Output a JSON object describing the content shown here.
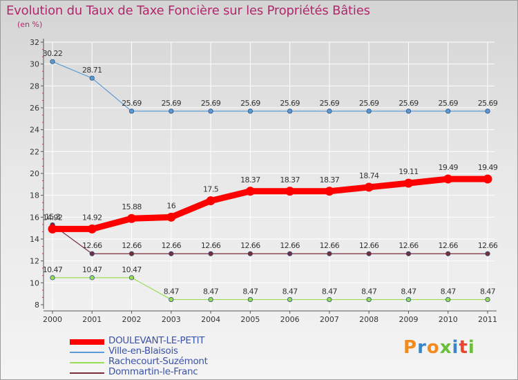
{
  "title": "Evolution du Taux de Taxe Foncière sur les Propriétés Bâties",
  "subtitle": "(en %)",
  "chart_data": {
    "type": "line",
    "title": "Evolution du Taux de Taxe Foncière sur les Propriétés Bâties",
    "ylabel": "(en %)",
    "xlabel": "",
    "ylim": [
      8,
      32
    ],
    "y_ticks": [
      8,
      10,
      12,
      14,
      16,
      18,
      20,
      22,
      24,
      26,
      28,
      30,
      32
    ],
    "categories": [
      "2000",
      "2001",
      "2002",
      "2003",
      "2004",
      "2005",
      "2006",
      "2007",
      "2008",
      "2009",
      "2010",
      "2011"
    ],
    "series": [
      {
        "name": "DOULEVANT-LE-PETIT",
        "color": "#ff0000",
        "values": [
          14.92,
          14.92,
          15.88,
          16,
          17.5,
          18.37,
          18.37,
          18.37,
          18.74,
          19.11,
          19.49,
          19.49
        ],
        "labels": [
          "14.92",
          "14.92",
          "15.88",
          "16",
          "17.5",
          "18.37",
          "18.37",
          "18.37",
          "18.74",
          "19.11",
          "19.49",
          "19.49"
        ]
      },
      {
        "name": "Ville-en-Blaisois",
        "color": "#5b9bd5",
        "values": [
          30.22,
          28.71,
          25.69,
          25.69,
          25.69,
          25.69,
          25.69,
          25.69,
          25.69,
          25.69,
          25.69,
          25.69
        ],
        "labels": [
          "30.22",
          "28.71",
          "25.69",
          "25.69",
          "25.69",
          "25.69",
          "25.69",
          "25.69",
          "25.69",
          "25.69",
          "25.69",
          "25.69"
        ]
      },
      {
        "name": "Rachecourt-Suzémont",
        "color": "#99dd55",
        "values": [
          10.47,
          10.47,
          10.47,
          8.47,
          8.47,
          8.47,
          8.47,
          8.47,
          8.47,
          8.47,
          8.47,
          8.47
        ],
        "labels": [
          "10.47",
          "10.47",
          "10.47",
          "8.47",
          "8.47",
          "8.47",
          "8.47",
          "8.47",
          "8.47",
          "8.47",
          "8.47",
          "8.47"
        ]
      },
      {
        "name": "Dommartin-le-Franc",
        "color": "#7a2c3a",
        "values": [
          15.3,
          12.66,
          12.66,
          12.66,
          12.66,
          12.66,
          12.66,
          12.66,
          12.66,
          12.66,
          12.66,
          12.66
        ],
        "labels": [
          "15.3",
          "12.66",
          "12.66",
          "12.66",
          "12.66",
          "12.66",
          "12.66",
          "12.66",
          "12.66",
          "12.66",
          "12.66",
          "12.66"
        ]
      }
    ],
    "legend_position": "bottom-left"
  },
  "legend": [
    {
      "label": "DOULEVANT-LE-PETIT",
      "color": "#ff0000"
    },
    {
      "label": "Ville-en-Blaisois",
      "color": "#5b9bd5"
    },
    {
      "label": "Rachecourt-Suzémont",
      "color": "#99dd55"
    },
    {
      "label": "Dommartin-le-Franc",
      "color": "#7a2c3a"
    }
  ],
  "logo": {
    "text": "Proxiti",
    "colors": [
      "#f28a1e",
      "#3a86c8",
      "#f28a1e",
      "#6abf3a",
      "#3a86c8",
      "#e8472e",
      "#6abf3a"
    ]
  }
}
